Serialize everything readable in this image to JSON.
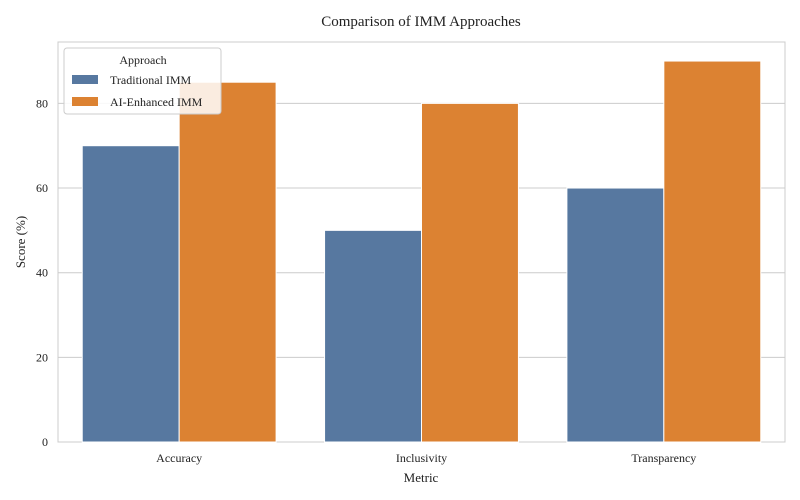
{
  "chart_data": {
    "type": "bar",
    "title": "Comparison of IMM Approaches",
    "xlabel": "Metric",
    "ylabel": "Score (%)",
    "categories": [
      "Accuracy",
      "Inclusivity",
      "Transparency"
    ],
    "series": [
      {
        "name": "Traditional IMM",
        "values": [
          70,
          50,
          60
        ],
        "color": "#5778a0"
      },
      {
        "name": "AI-Enhanced IMM",
        "values": [
          85,
          80,
          90
        ],
        "color": "#dc8232"
      }
    ],
    "ylim": [
      0,
      94.5
    ],
    "yticks": [
      0,
      20,
      40,
      60,
      80
    ],
    "grid": true,
    "legend": {
      "title": "Approach",
      "placement": "top-left"
    }
  }
}
